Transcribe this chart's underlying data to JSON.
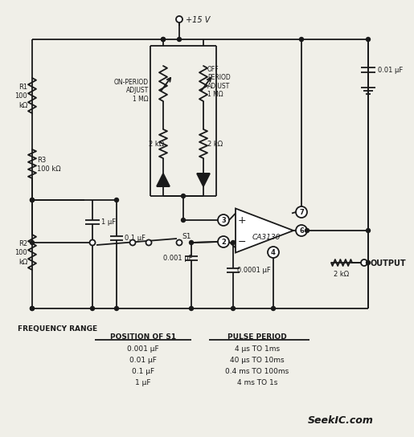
{
  "bg_color": "#f0efe8",
  "line_color": "#1a1a1a",
  "vcc_label": "+15 V",
  "r1_label": "R1\n100\nkΩ",
  "r2_label": "R2\n100\nkΩ",
  "r3_label": "R3\n100 kΩ",
  "on_period_label": "ON-PERIOD\nADJUST\n1 MΩ",
  "off_period_label": "OFF\nPERIOD\nADJUST\n1 MΩ",
  "r2k_1_label": "2 kΩ",
  "r2k_2_label": "2 kΩ",
  "r2k_out_label": "2 kΩ",
  "ca3130_label": "CA3130",
  "output_label": "OUTPUT",
  "cap_right_label": "0.01 μF",
  "cap_1uF_label": "1 μF",
  "cap_01uF_label": "0.1 μF",
  "cap_001uF_label": "0.001 μF",
  "cap_0001uF_label": "0.0001 μF",
  "s1_label": "S1",
  "freq_range_label": "FREQUENCY RANGE",
  "pos_s1_label": "POSITION OF S1",
  "pulse_period_label": "PULSE PERIOD",
  "table_rows": [
    [
      "0.001 μF",
      "4 μs TO 1ms"
    ],
    [
      "0.01 μF",
      "40 μs TO 10ms"
    ],
    [
      "0.1 μF",
      "0.4 ms TO 100ms"
    ],
    [
      "1 μF",
      "4 ms TO 1s"
    ]
  ],
  "seekic_text": "SeekIC.com"
}
